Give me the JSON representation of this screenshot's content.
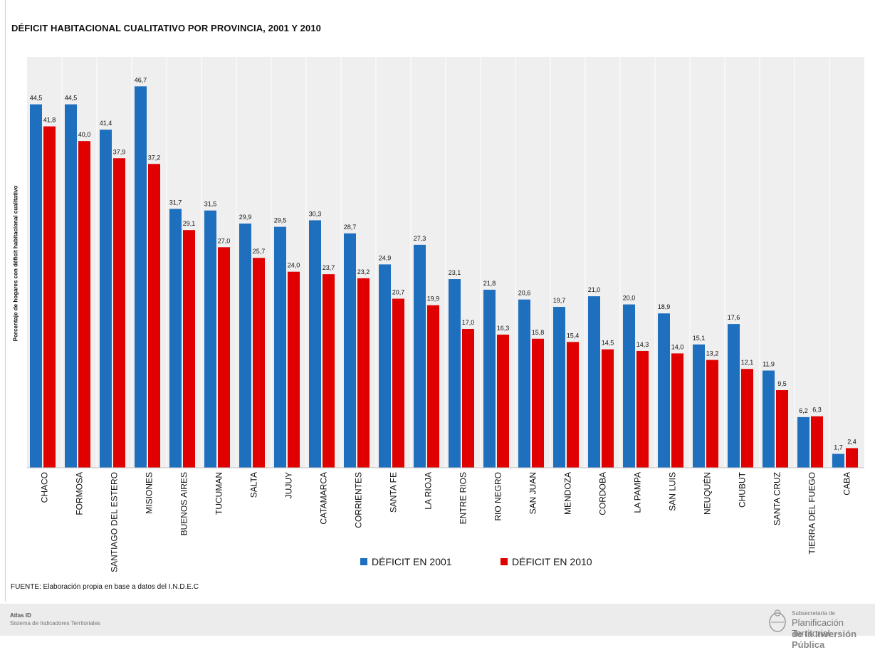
{
  "title": "DÉFICIT HABITACIONAL CUALITATIVO POR PROVINCIA,  2001 Y 2010",
  "source_note": "FUENTE: Elaboración propia en base a datos del I.N.D.E.C",
  "footer": {
    "app_name": "Atlas ID",
    "app_subtitle": "Sistema de Indicadores Territoriales",
    "org_small": "Subsecretaría de",
    "org_big": "Planificación Territorial",
    "org_cut": "de la Inversión Pública"
  },
  "colors": {
    "series_2001": "#1f6fbf",
    "series_2010": "#e00000",
    "plot_bg": "#efefef"
  },
  "chart_data": {
    "type": "bar",
    "title": "DÉFICIT HABITACIONAL CUALITATIVO POR PROVINCIA,  2001 Y 2010",
    "xlabel": "",
    "ylabel": "Porcentaje de hogares con déficit habitacional cualitativo",
    "ylim": [
      0,
      50
    ],
    "grid": false,
    "legend_position": "bottom",
    "categories": [
      "CHACO",
      "FORMOSA",
      "SANTIAGO DEL ESTERO",
      "MISIONES",
      "BUENOS AIRES",
      "TUCUMAN",
      "SALTA",
      "JUJUY",
      "CATAMARCA",
      "CORRIENTES",
      "SANTA FE",
      "LA RIOJA",
      "ENTRE RIOS",
      "RIO NEGRO",
      "SAN JUAN",
      "MENDOZA",
      "CORDOBA",
      "LA PAMPA",
      "SAN LUIS",
      "NEUQUÉN",
      "CHUBUT",
      "SANTA CRUZ",
      "TIERRA DEL FUEGO",
      "CABA"
    ],
    "series": [
      {
        "name": "DÉFICIT EN 2001",
        "values": [
          44.5,
          44.5,
          41.4,
          46.7,
          31.7,
          31.5,
          29.9,
          29.5,
          30.3,
          28.7,
          24.9,
          27.3,
          23.1,
          21.8,
          20.6,
          19.7,
          21.0,
          20.0,
          18.9,
          15.1,
          17.6,
          11.9,
          6.2,
          1.7
        ],
        "labels": [
          "44,5",
          "44,5",
          "41,4",
          "46,7",
          "31,7",
          "31,5",
          "29,9",
          "29,5",
          "30,3",
          "28,7",
          "24,9",
          "27,3",
          "23,1",
          "21,8",
          "20,6",
          "19,7",
          "21,0",
          "20,0",
          "18,9",
          "15,1",
          "17,6",
          "11,9",
          "6,2",
          "1,7"
        ]
      },
      {
        "name": "DÉFICIT EN 2010",
        "values": [
          41.8,
          40.0,
          37.9,
          37.2,
          29.1,
          27.0,
          25.7,
          24.0,
          23.7,
          23.2,
          20.7,
          19.9,
          17.0,
          16.3,
          15.8,
          15.4,
          14.5,
          14.3,
          14.0,
          13.2,
          12.1,
          9.5,
          6.3,
          2.4
        ],
        "labels": [
          "41,8",
          "40,0",
          "37,9",
          "37,2",
          "29,1",
          "27,0",
          "25,7",
          "24,0",
          "23,7",
          "23,2",
          "20,7",
          "19,9",
          "17,0",
          "16,3",
          "15,8",
          "15,4",
          "14,5",
          "14,3",
          "14,0",
          "13,2",
          "12,1",
          "9,5",
          "6,3",
          "2,4"
        ]
      }
    ]
  }
}
